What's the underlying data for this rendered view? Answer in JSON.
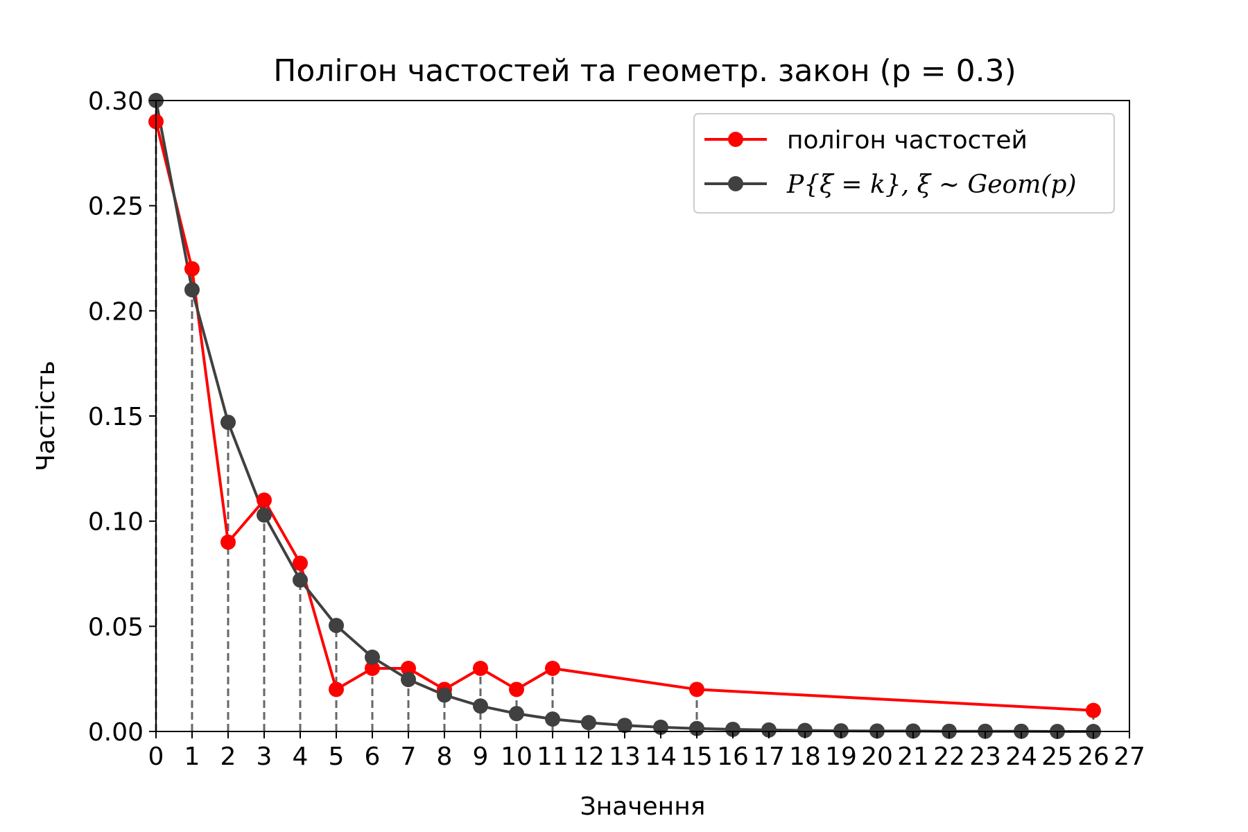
{
  "chart_data": {
    "type": "line",
    "title": "Полігон частостей та геометр. закон (p = 0.3)",
    "xlabel": "Значення",
    "ylabel": "Частість",
    "xlim": [
      0,
      27
    ],
    "ylim": [
      0,
      0.3
    ],
    "x_ticks": [
      "0",
      "1",
      "2",
      "3",
      "4",
      "5",
      "6",
      "7",
      "8",
      "9",
      "10",
      "11",
      "12",
      "13",
      "14",
      "15",
      "16",
      "17",
      "18",
      "19",
      "20",
      "21",
      "22",
      "23",
      "24",
      "25",
      "26",
      "27"
    ],
    "y_ticks": [
      "0.00",
      "0.05",
      "0.10",
      "0.15",
      "0.20",
      "0.25",
      "0.30"
    ],
    "grid": false,
    "legend_position": "top-right",
    "series": [
      {
        "name": "полігон частостей",
        "color": "#ff0000",
        "x": [
          0,
          1,
          2,
          3,
          4,
          5,
          6,
          7,
          8,
          9,
          10,
          11,
          15,
          26
        ],
        "values": [
          0.29,
          0.22,
          0.09,
          0.11,
          0.08,
          0.02,
          0.03,
          0.03,
          0.02,
          0.03,
          0.02,
          0.03,
          0.02,
          0.01
        ]
      },
      {
        "name": "P{ξ = k}, ξ ~ Geom(p)",
        "color": "#404040",
        "x": [
          0,
          1,
          2,
          3,
          4,
          5,
          6,
          7,
          8,
          9,
          10,
          11,
          12,
          13,
          14,
          15,
          16,
          17,
          18,
          19,
          20,
          21,
          22,
          23,
          24,
          25,
          26
        ],
        "values": [
          0.3,
          0.21,
          0.147,
          0.1029,
          0.072,
          0.0504,
          0.0353,
          0.0247,
          0.0173,
          0.0121,
          0.0085,
          0.0059,
          0.0042,
          0.0029,
          0.002,
          0.0014,
          0.001,
          0.0007,
          0.0005,
          0.0003,
          0.0002,
          0.0002,
          0.0001,
          0.0001,
          0.0001,
          0.0,
          0.0
        ]
      }
    ]
  }
}
